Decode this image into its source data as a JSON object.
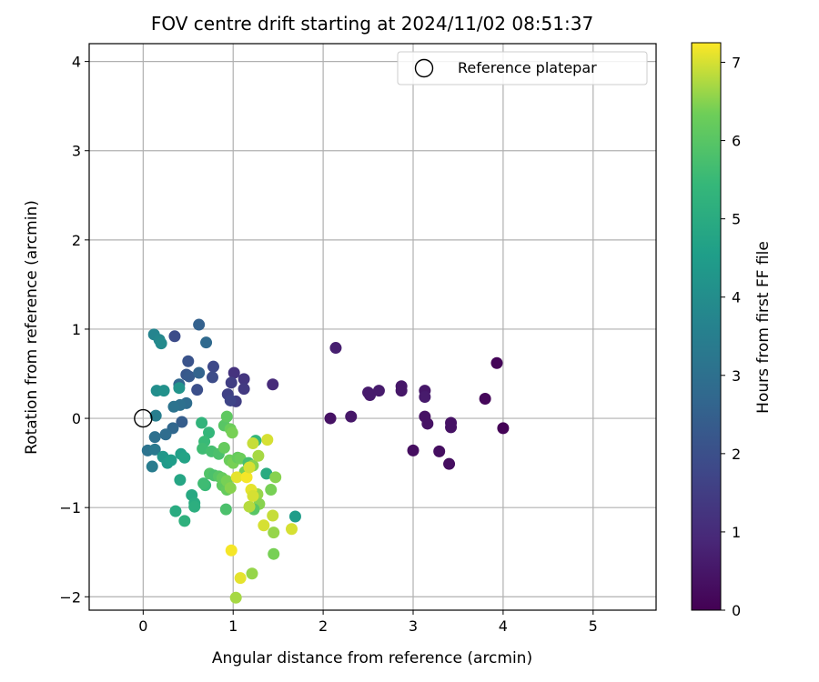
{
  "chart_data": {
    "type": "scatter",
    "title": "FOV centre drift starting at 2024/11/02 08:51:37",
    "xlabel": "Angular distance from reference (arcmin)",
    "ylabel": "Rotation from reference (arcmin)",
    "xlim": [
      -0.6,
      5.7
    ],
    "ylim": [
      -2.15,
      4.2
    ],
    "xticks": [
      0,
      1,
      2,
      3,
      4,
      5
    ],
    "yticks": [
      -2,
      -1,
      0,
      1,
      2,
      3,
      4
    ],
    "grid": true,
    "legend": {
      "position": "top-right",
      "entries": [
        "Reference platepar"
      ]
    },
    "reference_point": {
      "x": 0,
      "y": 0
    },
    "colorbar": {
      "label": "Hours from first FF file",
      "colormap": "viridis",
      "range": [
        0,
        7.25
      ],
      "ticks": [
        0,
        1,
        2,
        3,
        4,
        5,
        6,
        7
      ]
    },
    "points": [
      {
        "x": 2.14,
        "y": 0.79,
        "c": 0.7
      },
      {
        "x": 2.08,
        "y": 0.0,
        "c": 0.4
      },
      {
        "x": 2.31,
        "y": 0.02,
        "c": 0.5
      },
      {
        "x": 2.5,
        "y": 0.29,
        "c": 0.6
      },
      {
        "x": 2.52,
        "y": 0.26,
        "c": 0.6
      },
      {
        "x": 2.62,
        "y": 0.31,
        "c": 0.6
      },
      {
        "x": 2.87,
        "y": 0.36,
        "c": 0.5
      },
      {
        "x": 2.87,
        "y": 0.31,
        "c": 0.5
      },
      {
        "x": 3.0,
        "y": -0.36,
        "c": 0.3
      },
      {
        "x": 3.13,
        "y": 0.31,
        "c": 0.5
      },
      {
        "x": 3.13,
        "y": 0.24,
        "c": 0.6
      },
      {
        "x": 3.13,
        "y": 0.02,
        "c": 0.4
      },
      {
        "x": 3.16,
        "y": -0.06,
        "c": 0.4
      },
      {
        "x": 3.29,
        "y": -0.37,
        "c": 0.3
      },
      {
        "x": 3.4,
        "y": -0.51,
        "c": 0.3
      },
      {
        "x": 3.42,
        "y": -0.05,
        "c": 0.4
      },
      {
        "x": 3.42,
        "y": -0.1,
        "c": 0.4
      },
      {
        "x": 3.8,
        "y": 0.22,
        "c": 0.15
      },
      {
        "x": 3.93,
        "y": 0.62,
        "c": 0.1
      },
      {
        "x": 4.0,
        "y": -0.11,
        "c": 0.05
      },
      {
        "x": 1.44,
        "y": 0.38,
        "c": 1.0
      },
      {
        "x": 1.01,
        "y": 0.51,
        "c": 1.2
      },
      {
        "x": 1.12,
        "y": 0.44,
        "c": 1.3
      },
      {
        "x": 0.98,
        "y": 0.4,
        "c": 1.5
      },
      {
        "x": 0.94,
        "y": 0.27,
        "c": 1.6
      },
      {
        "x": 1.12,
        "y": 0.33,
        "c": 1.4
      },
      {
        "x": 1.03,
        "y": 0.19,
        "c": 1.5
      },
      {
        "x": 0.97,
        "y": 0.2,
        "c": 1.7
      },
      {
        "x": 0.78,
        "y": 0.58,
        "c": 1.8
      },
      {
        "x": 0.77,
        "y": 0.46,
        "c": 1.9
      },
      {
        "x": 0.6,
        "y": 0.32,
        "c": 2.0
      },
      {
        "x": 0.5,
        "y": 0.64,
        "c": 2.1
      },
      {
        "x": 0.48,
        "y": 0.49,
        "c": 2.2
      },
      {
        "x": 0.51,
        "y": 0.47,
        "c": 2.3
      },
      {
        "x": 0.35,
        "y": 0.92,
        "c": 1.9
      },
      {
        "x": 0.62,
        "y": 1.05,
        "c": 2.5
      },
      {
        "x": 0.7,
        "y": 0.85,
        "c": 2.8
      },
      {
        "x": 0.62,
        "y": 0.51,
        "c": 2.6
      },
      {
        "x": 0.4,
        "y": 0.38,
        "c": 2.7
      },
      {
        "x": 0.48,
        "y": 0.17,
        "c": 2.9
      },
      {
        "x": 0.41,
        "y": 0.15,
        "c": 3.0
      },
      {
        "x": 0.34,
        "y": 0.13,
        "c": 3.1
      },
      {
        "x": 0.43,
        "y": -0.04,
        "c": 2.4
      },
      {
        "x": 0.33,
        "y": -0.11,
        "c": 2.7
      },
      {
        "x": 0.25,
        "y": -0.18,
        "c": 2.9
      },
      {
        "x": 0.13,
        "y": -0.21,
        "c": 3.0
      },
      {
        "x": 0.05,
        "y": -0.36,
        "c": 3.1
      },
      {
        "x": 0.13,
        "y": -0.35,
        "c": 3.3
      },
      {
        "x": 0.1,
        "y": -0.54,
        "c": 3.4
      },
      {
        "x": 0.14,
        "y": 0.03,
        "c": 3.5
      },
      {
        "x": 0.12,
        "y": 0.94,
        "c": 3.7
      },
      {
        "x": 0.18,
        "y": 0.88,
        "c": 3.8
      },
      {
        "x": 0.2,
        "y": 0.84,
        "c": 3.9
      },
      {
        "x": 0.15,
        "y": 0.31,
        "c": 4.0
      },
      {
        "x": 0.23,
        "y": 0.31,
        "c": 4.1
      },
      {
        "x": 0.4,
        "y": 0.34,
        "c": 4.2
      },
      {
        "x": 0.22,
        "y": -0.43,
        "c": 4.3
      },
      {
        "x": 0.27,
        "y": -0.5,
        "c": 4.4
      },
      {
        "x": 0.31,
        "y": -0.47,
        "c": 4.5
      },
      {
        "x": 0.42,
        "y": -0.4,
        "c": 4.6
      },
      {
        "x": 0.46,
        "y": -0.44,
        "c": 4.7
      },
      {
        "x": 0.41,
        "y": -0.69,
        "c": 4.8
      },
      {
        "x": 0.54,
        "y": -0.86,
        "c": 4.9
      },
      {
        "x": 0.57,
        "y": -0.95,
        "c": 5.0
      },
      {
        "x": 0.57,
        "y": -0.99,
        "c": 5.1
      },
      {
        "x": 0.36,
        "y": -1.04,
        "c": 5.0
      },
      {
        "x": 0.46,
        "y": -1.15,
        "c": 5.2
      },
      {
        "x": 1.69,
        "y": -1.1,
        "c": 4.5
      },
      {
        "x": 1.37,
        "y": -0.62,
        "c": 5.0
      },
      {
        "x": 0.65,
        "y": -0.05,
        "c": 5.3
      },
      {
        "x": 0.73,
        "y": -0.16,
        "c": 5.4
      },
      {
        "x": 0.68,
        "y": -0.26,
        "c": 5.5
      },
      {
        "x": 0.66,
        "y": -0.34,
        "c": 5.6
      },
      {
        "x": 0.76,
        "y": -0.37,
        "c": 5.7
      },
      {
        "x": 0.84,
        "y": -0.4,
        "c": 5.8
      },
      {
        "x": 0.74,
        "y": -0.62,
        "c": 5.9
      },
      {
        "x": 0.69,
        "y": -0.75,
        "c": 5.5
      },
      {
        "x": 0.67,
        "y": -0.73,
        "c": 5.6
      },
      {
        "x": 0.79,
        "y": -0.64,
        "c": 5.8
      },
      {
        "x": 0.84,
        "y": -0.65,
        "c": 6.0
      },
      {
        "x": 0.88,
        "y": -0.75,
        "c": 6.1
      },
      {
        "x": 0.93,
        "y": -0.8,
        "c": 6.2
      },
      {
        "x": 0.9,
        "y": -0.08,
        "c": 6.0
      },
      {
        "x": 0.93,
        "y": 0.02,
        "c": 6.1
      },
      {
        "x": 0.97,
        "y": -0.12,
        "c": 6.3
      },
      {
        "x": 0.99,
        "y": -0.16,
        "c": 6.4
      },
      {
        "x": 0.9,
        "y": -0.33,
        "c": 6.2
      },
      {
        "x": 0.96,
        "y": -0.47,
        "c": 6.3
      },
      {
        "x": 1.0,
        "y": -0.5,
        "c": 6.4
      },
      {
        "x": 1.05,
        "y": -0.44,
        "c": 6.2
      },
      {
        "x": 1.08,
        "y": -0.45,
        "c": 6.3
      },
      {
        "x": 1.13,
        "y": -0.6,
        "c": 6.4
      },
      {
        "x": 1.17,
        "y": -0.5,
        "c": 5.7
      },
      {
        "x": 1.22,
        "y": -0.53,
        "c": 6.5
      },
      {
        "x": 1.25,
        "y": -0.25,
        "c": 5.4
      },
      {
        "x": 1.27,
        "y": -0.85,
        "c": 6.6
      },
      {
        "x": 1.29,
        "y": -0.96,
        "c": 6.5
      },
      {
        "x": 1.28,
        "y": -0.42,
        "c": 6.7
      },
      {
        "x": 1.22,
        "y": -0.28,
        "c": 6.9
      },
      {
        "x": 1.38,
        "y": -0.24,
        "c": 7.0
      },
      {
        "x": 1.42,
        "y": -0.8,
        "c": 6.4
      },
      {
        "x": 1.47,
        "y": -0.66,
        "c": 6.5
      },
      {
        "x": 1.23,
        "y": -1.02,
        "c": 6.0
      },
      {
        "x": 1.18,
        "y": -0.99,
        "c": 6.8
      },
      {
        "x": 1.44,
        "y": -1.09,
        "c": 6.9
      },
      {
        "x": 1.34,
        "y": -1.2,
        "c": 7.0
      },
      {
        "x": 1.45,
        "y": -1.28,
        "c": 6.6
      },
      {
        "x": 1.45,
        "y": -1.52,
        "c": 6.4
      },
      {
        "x": 1.65,
        "y": -1.24,
        "c": 7.0
      },
      {
        "x": 0.92,
        "y": -1.02,
        "c": 5.8
      },
      {
        "x": 0.88,
        "y": -0.67,
        "c": 6.2
      },
      {
        "x": 0.93,
        "y": -0.7,
        "c": 6.4
      },
      {
        "x": 0.97,
        "y": -0.78,
        "c": 6.5
      },
      {
        "x": 1.04,
        "y": -0.66,
        "c": 7.1
      },
      {
        "x": 1.15,
        "y": -0.66,
        "c": 7.2
      },
      {
        "x": 1.18,
        "y": -0.55,
        "c": 7.0
      },
      {
        "x": 1.2,
        "y": -0.8,
        "c": 7.1
      },
      {
        "x": 1.22,
        "y": -0.87,
        "c": 7.0
      },
      {
        "x": 0.98,
        "y": -1.48,
        "c": 7.2
      },
      {
        "x": 1.08,
        "y": -1.79,
        "c": 7.1
      },
      {
        "x": 1.21,
        "y": -1.74,
        "c": 6.6
      },
      {
        "x": 1.03,
        "y": -2.01,
        "c": 6.7
      }
    ]
  }
}
